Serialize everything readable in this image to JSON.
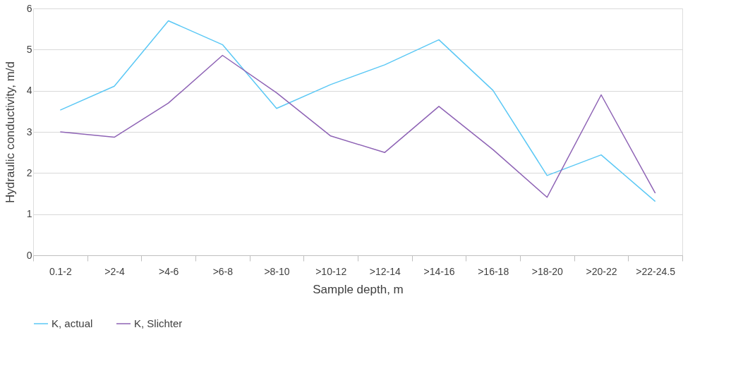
{
  "chart_data": {
    "type": "line",
    "xlabel": "Sample depth, m",
    "ylabel": "Hydraulic conductivity, m/d",
    "categories": [
      "0.1-2",
      ">2-4",
      ">4-6",
      ">6-8",
      ">8-10",
      ">10-12",
      ">12-14",
      ">14-16",
      ">16-18",
      ">18-20",
      ">20-22",
      ">22-24.5"
    ],
    "series": [
      {
        "name": "K, actual",
        "color": "#5bc8f5",
        "values": [
          3.53,
          4.11,
          5.7,
          5.12,
          3.57,
          4.15,
          4.63,
          5.24,
          4.01,
          1.94,
          2.44,
          1.31
        ]
      },
      {
        "name": "K, Slichter",
        "color": "#8e63b5",
        "values": [
          3.0,
          2.87,
          3.7,
          4.86,
          3.95,
          2.9,
          2.5,
          3.62,
          2.57,
          1.41,
          3.9,
          1.51
        ]
      }
    ],
    "ylim": [
      0,
      6
    ],
    "yticks": [
      0,
      1,
      2,
      3,
      4,
      5,
      6
    ],
    "grid": "y",
    "legend": "bottom",
    "marker": "none",
    "line_style": "solid"
  }
}
